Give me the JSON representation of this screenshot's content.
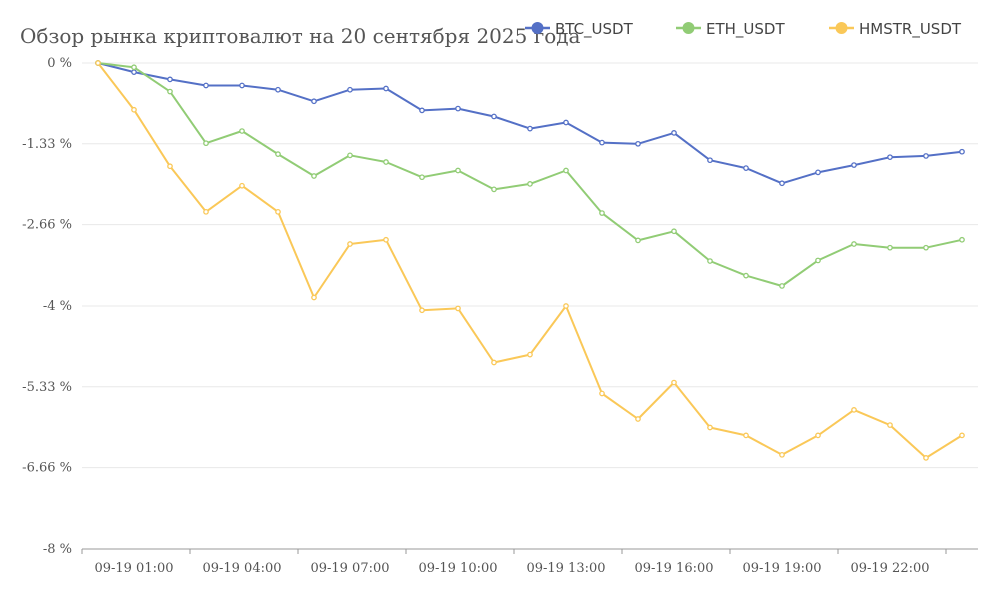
{
  "chart_data": {
    "type": "line",
    "title": "Обзор рынка криптовалют на 20 сентября 2025 года",
    "xlabel": "",
    "ylabel": "",
    "ylim": [
      -8,
      0
    ],
    "y_ticks": [
      0,
      -1.33,
      -2.66,
      -4,
      -5.33,
      -6.66,
      -8
    ],
    "y_tick_labels": [
      "0 %",
      "-1.33 %",
      "-2.66 %",
      "-4 %",
      "-5.33 %",
      "-6.66 %",
      "-8 %"
    ],
    "x": [
      "09-19 00:00",
      "09-19 01:00",
      "09-19 02:00",
      "09-19 03:00",
      "09-19 04:00",
      "09-19 05:00",
      "09-19 06:00",
      "09-19 07:00",
      "09-19 08:00",
      "09-19 09:00",
      "09-19 10:00",
      "09-19 11:00",
      "09-19 12:00",
      "09-19 13:00",
      "09-19 14:00",
      "09-19 15:00",
      "09-19 16:00",
      "09-19 17:00",
      "09-19 18:00",
      "09-19 19:00",
      "09-19 20:00",
      "09-19 21:00",
      "09-19 22:00",
      "09-19 23:00",
      "09-20 00:00"
    ],
    "x_tick_labels": [
      "09-19 01:00",
      "09-19 04:00",
      "09-19 07:00",
      "09-19 10:00",
      "09-19 13:00",
      "09-19 16:00",
      "09-19 19:00",
      "09-19 22:00"
    ],
    "grid": true,
    "legend_position": "top-right",
    "series": [
      {
        "name": "BTC_USDT",
        "color": "#5470c6",
        "values": [
          0,
          -0.15,
          -0.27,
          -0.37,
          -0.37,
          -0.44,
          -0.63,
          -0.44,
          -0.42,
          -0.78,
          -0.75,
          -0.88,
          -1.08,
          -0.98,
          -1.31,
          -1.33,
          -1.15,
          -1.6,
          -1.73,
          -1.98,
          -1.8,
          -1.68,
          -1.55,
          -1.53,
          -1.46
        ]
      },
      {
        "name": "ETH_USDT",
        "color": "#91cc75",
        "values": [
          0,
          -0.07,
          -0.47,
          -1.32,
          -1.12,
          -1.5,
          -1.86,
          -1.52,
          -1.63,
          -1.88,
          -1.77,
          -2.08,
          -1.99,
          -1.77,
          -2.47,
          -2.92,
          -2.77,
          -3.26,
          -3.5,
          -3.67,
          -3.25,
          -2.98,
          -3.04,
          -3.04,
          -2.91
        ]
      },
      {
        "name": "HMSTR_USDT",
        "color": "#fac858",
        "values": [
          0,
          -0.77,
          -1.7,
          -2.45,
          -2.02,
          -2.45,
          -3.86,
          -2.98,
          -2.91,
          -4.07,
          -4.04,
          -4.93,
          -4.8,
          -4.0,
          -5.44,
          -5.86,
          -5.26,
          -6.0,
          -6.13,
          -6.45,
          -6.13,
          -5.71,
          -5.96,
          -6.5,
          -6.13
        ]
      }
    ]
  }
}
